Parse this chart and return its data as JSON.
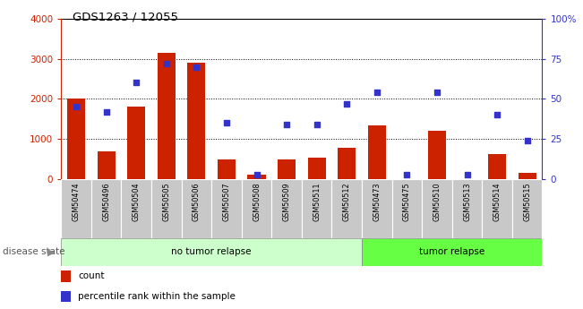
{
  "title": "GDS1263 / 12055",
  "samples": [
    "GSM50474",
    "GSM50496",
    "GSM50504",
    "GSM50505",
    "GSM50506",
    "GSM50507",
    "GSM50508",
    "GSM50509",
    "GSM50511",
    "GSM50512",
    "GSM50473",
    "GSM50475",
    "GSM50510",
    "GSM50513",
    "GSM50514",
    "GSM50515"
  ],
  "counts": [
    2020,
    700,
    1800,
    3150,
    2900,
    500,
    120,
    490,
    530,
    790,
    1340,
    10,
    1200,
    10,
    620,
    150
  ],
  "percentiles": [
    45,
    42,
    60,
    72,
    70,
    35,
    3,
    34,
    34,
    47,
    54,
    3,
    54,
    3,
    40,
    24
  ],
  "no_tumor_count": 10,
  "tumor_count": 6,
  "ylim_left": [
    0,
    4000
  ],
  "ylim_right": [
    0,
    100
  ],
  "yticks_left": [
    0,
    1000,
    2000,
    3000,
    4000
  ],
  "yticks_right": [
    0,
    25,
    50,
    75,
    100
  ],
  "bar_color": "#cc2200",
  "scatter_color": "#3333cc",
  "no_tumor_color": "#ccffcc",
  "tumor_color": "#66ff44",
  "label_bg_color": "#c8c8c8",
  "disease_label": "disease state",
  "no_tumor_label": "no tumor relapse",
  "tumor_label": "tumor relapse",
  "count_legend": "count",
  "percentile_legend": "percentile rank within the sample"
}
